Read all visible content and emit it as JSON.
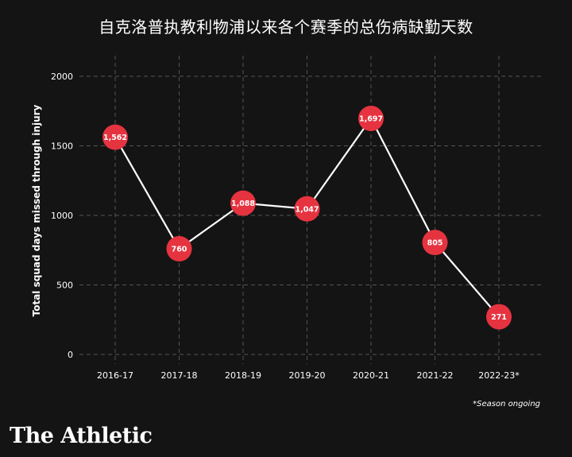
{
  "header": {
    "title": "自克洛普执教利物浦以来各个赛季的总伤病缺勤天数"
  },
  "footer": {
    "note": "*Season ongoing",
    "brand": "The Athletic"
  },
  "colors": {
    "background": "#141414",
    "marker": "#e63340",
    "line": "#ffffff",
    "grid": "#555555"
  },
  "chart_data": {
    "type": "line",
    "title": "自克洛普执教利物浦以来各个赛季的总伤病缺勤天数",
    "xlabel": "",
    "ylabel": "Total squad days missed through injury",
    "categories": [
      "2016-17",
      "2017-18",
      "2018-19",
      "2019-20",
      "2020-21",
      "2021-22",
      "2022-23*"
    ],
    "series": [
      {
        "values": [
          1562,
          760,
          1088,
          1047,
          1697,
          805,
          271
        ]
      }
    ],
    "data_labels": [
      "1,562",
      "760",
      "1,088",
      "1,047",
      "1,697",
      "805",
      "271"
    ],
    "yticks": [
      0,
      500,
      1000,
      1500,
      2000
    ],
    "ylim": [
      0,
      2000
    ],
    "grid": true,
    "legend": "none"
  }
}
